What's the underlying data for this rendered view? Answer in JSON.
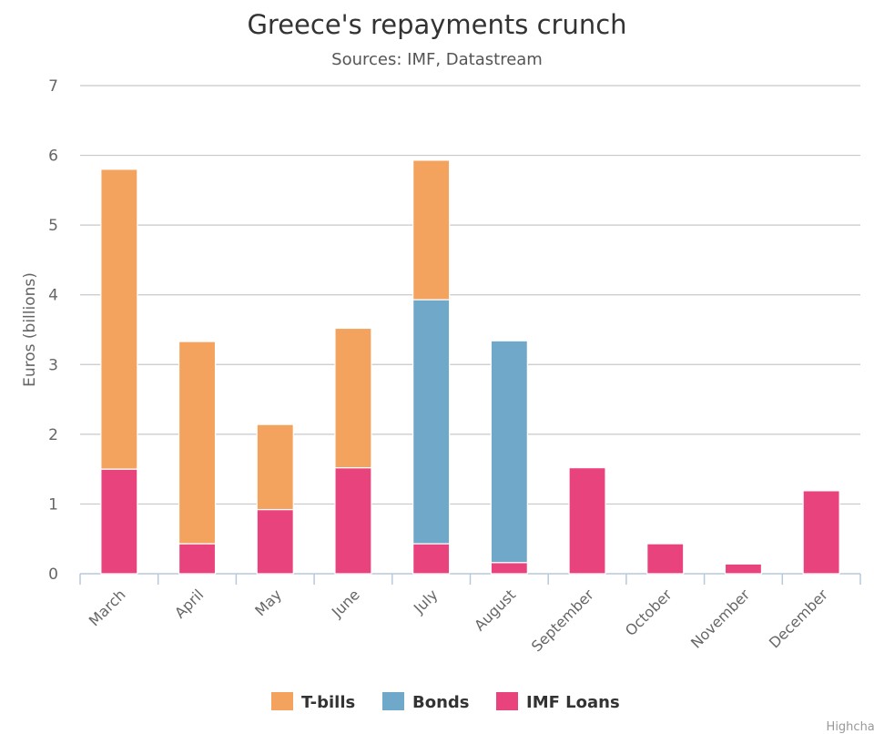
{
  "chart_data": {
    "type": "bar",
    "stacked": true,
    "title": "Greece's repayments crunch",
    "subtitle": "Sources: IMF, Datastream",
    "xlabel": "",
    "ylabel": "Euros (billions)",
    "ylim": [
      0,
      7
    ],
    "yticks": [
      "0",
      "1",
      "2",
      "3",
      "4",
      "5",
      "6",
      "7"
    ],
    "grid": true,
    "legend_position": "bottom-center",
    "categories": [
      "March",
      "April",
      "May",
      "June",
      "July",
      "August",
      "September",
      "October",
      "November",
      "December"
    ],
    "series": [
      {
        "name": "IMF Loans",
        "color": "#e8437d",
        "values": [
          1.5,
          0.43,
          0.92,
          1.52,
          0.43,
          0.16,
          1.52,
          0.43,
          0.14,
          1.19
        ]
      },
      {
        "name": "Bonds",
        "color": "#6fa8c8",
        "values": [
          0,
          0,
          0,
          0,
          3.5,
          3.18,
          0,
          0,
          0,
          0
        ]
      },
      {
        "name": "T-bills",
        "color": "#f4a35e",
        "values": [
          4.3,
          2.9,
          1.22,
          2.0,
          2.0,
          0,
          0,
          0,
          0,
          0
        ]
      }
    ],
    "legend_order": [
      "T-bills",
      "Bonds",
      "IMF Loans"
    ]
  },
  "credit": "Highcharts"
}
